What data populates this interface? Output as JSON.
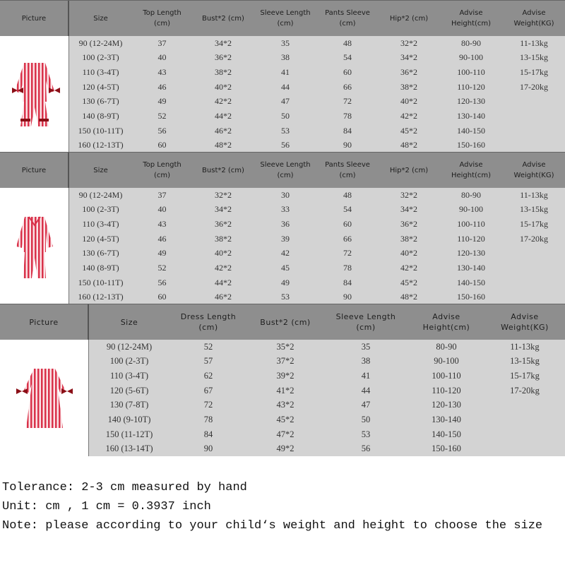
{
  "tables": [
    {
      "headers": [
        "Picture",
        "Size",
        "Top Length\n(cm)",
        "Bust*2 (cm)",
        "Sleeve Length\n(cm)",
        "Pants Sleeve\n(cm)",
        "Hip*2 (cm)",
        "Advise\nHeight(cm)",
        "Advise\nWeight(KG)"
      ],
      "picture": "pajama-set-ruffle-bows",
      "rows": [
        [
          "90 (12-24M)",
          "37",
          "34*2",
          "35",
          "48",
          "32*2",
          "80-90",
          "11-13kg"
        ],
        [
          "100 (2-3T)",
          "40",
          "36*2",
          "38",
          "54",
          "34*2",
          "90-100",
          "13-15kg"
        ],
        [
          "110 (3-4T)",
          "43",
          "38*2",
          "41",
          "60",
          "36*2",
          "100-110",
          "15-17kg"
        ],
        [
          "120 (4-5T)",
          "46",
          "40*2",
          "44",
          "66",
          "38*2",
          "110-120",
          "17-20kg"
        ],
        [
          "130 (6-7T)",
          "49",
          "42*2",
          "47",
          "72",
          "40*2",
          "120-130",
          ""
        ],
        [
          "140 (8-9T)",
          "52",
          "44*2",
          "50",
          "78",
          "42*2",
          "130-140",
          ""
        ],
        [
          "150 (10-11T)",
          "56",
          "46*2",
          "53",
          "84",
          "45*2",
          "140-150",
          ""
        ],
        [
          "160 (12-13T)",
          "60",
          "48*2",
          "56",
          "90",
          "48*2",
          "150-160",
          ""
        ]
      ]
    },
    {
      "headers": [
        "Picture",
        "Size",
        "Top Length\n(cm)",
        "Bust*2 (cm)",
        "Sleeve Length\n(cm)",
        "Pants Sleeve\n(cm)",
        "Hip*2 (cm)",
        "Advise\nHeight(cm)",
        "Advise\nWeight(KG)"
      ],
      "picture": "pajama-set-button-collar",
      "rows": [
        [
          "90 (12-24M)",
          "37",
          "32*2",
          "30",
          "48",
          "32*2",
          "80-90",
          "11-13kg"
        ],
        [
          "100 (2-3T)",
          "40",
          "34*2",
          "33",
          "54",
          "34*2",
          "90-100",
          "13-15kg"
        ],
        [
          "110 (3-4T)",
          "43",
          "36*2",
          "36",
          "60",
          "36*2",
          "100-110",
          "15-17kg"
        ],
        [
          "120 (4-5T)",
          "46",
          "38*2",
          "39",
          "66",
          "38*2",
          "110-120",
          "17-20kg"
        ],
        [
          "130 (6-7T)",
          "49",
          "40*2",
          "42",
          "72",
          "40*2",
          "120-130",
          ""
        ],
        [
          "140 (8-9T)",
          "52",
          "42*2",
          "45",
          "78",
          "42*2",
          "130-140",
          ""
        ],
        [
          "150 (10-11T)",
          "56",
          "44*2",
          "49",
          "84",
          "45*2",
          "140-150",
          ""
        ],
        [
          "160 (12-13T)",
          "60",
          "46*2",
          "53",
          "90",
          "48*2",
          "150-160",
          ""
        ]
      ]
    },
    {
      "headers": [
        "Picture",
        "Size",
        "Dress Length\n(cm)",
        "Bust*2 (cm)",
        "Sleeve Length\n(cm)",
        "Advise\nHeight(cm)",
        "Advise\nWeight(KG)"
      ],
      "picture": "striped-dress-bows",
      "rows": [
        [
          "90 (12-24M)",
          "52",
          "35*2",
          "35",
          "80-90",
          "11-13kg"
        ],
        [
          "100 (2-3T)",
          "57",
          "37*2",
          "38",
          "90-100",
          "13-15kg"
        ],
        [
          "110 (3-4T)",
          "62",
          "39*2",
          "41",
          "100-110",
          "15-17kg"
        ],
        [
          "120 (5-6T)",
          "67",
          "41*2",
          "44",
          "110-120",
          "17-20kg"
        ],
        [
          "130 (7-8T)",
          "72",
          "43*2",
          "47",
          "120-130",
          ""
        ],
        [
          "140 (9-10T)",
          "78",
          "45*2",
          "50",
          "130-140",
          ""
        ],
        [
          "150 (11-12T)",
          "84",
          "47*2",
          "53",
          "140-150",
          ""
        ],
        [
          "160 (13-14T)",
          "90",
          "49*2",
          "56",
          "150-160",
          ""
        ]
      ]
    }
  ],
  "notes": {
    "tolerance": "Tolerance: 2-3 cm measured by hand",
    "unit": "Unit: cm ,  1 cm = 0.3937 inch",
    "note": "Note: please according to your child‘s weight and height to choose the size"
  },
  "colors": {
    "header_bg": "#8e8e8e",
    "row_bg": "#d3d3d3",
    "stripe": "#d9324a",
    "bow": "#8b0f17"
  }
}
